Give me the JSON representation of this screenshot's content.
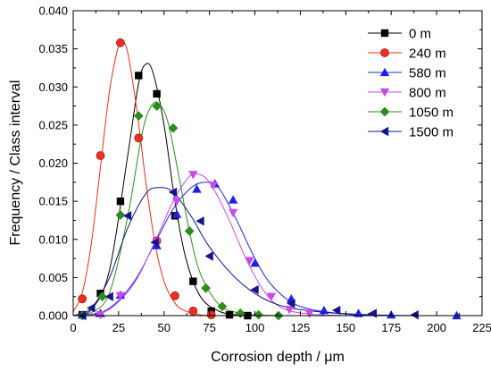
{
  "chart_data": {
    "type": "scatter",
    "xlabel": "Corrosion depth / μm",
    "ylabel": "Frequency / Class interval",
    "xlim": [
      0,
      225
    ],
    "ylim": [
      0,
      0.04
    ],
    "xticks": [
      "0",
      "25",
      "50",
      "75",
      "100",
      "125",
      "150",
      "175",
      "200",
      "225"
    ],
    "yticks": [
      "0.000",
      "0.005",
      "0.010",
      "0.015",
      "0.020",
      "0.025",
      "0.030",
      "0.035",
      "0.040"
    ],
    "grid": false,
    "legend_position": "top-right",
    "series": [
      {
        "name": "0 m",
        "color": "#000000",
        "marker": "square",
        "points": [
          [
            5,
            0.0001
          ],
          [
            15,
            0.0029
          ],
          [
            26,
            0.015
          ],
          [
            36,
            0.0315
          ],
          [
            46,
            0.0291
          ],
          [
            56,
            0.0131
          ],
          [
            66,
            0.0045
          ],
          [
            76,
            0.0006
          ],
          [
            86,
            0.0001
          ],
          [
            96,
            0.0
          ]
        ],
        "curve": [
          [
            0,
            0.0
          ],
          [
            10,
            0.0008
          ],
          [
            20,
            0.006
          ],
          [
            30,
            0.021
          ],
          [
            36,
            0.0305
          ],
          [
            40,
            0.033
          ],
          [
            44,
            0.0318
          ],
          [
            50,
            0.025
          ],
          [
            56,
            0.015
          ],
          [
            62,
            0.0075
          ],
          [
            70,
            0.0025
          ],
          [
            80,
            0.0006
          ],
          [
            90,
            0.0001
          ],
          [
            100,
            0.0
          ]
        ]
      },
      {
        "name": "240 m",
        "color": "#e8301f",
        "marker": "circle",
        "points": [
          [
            5,
            0.0022
          ],
          [
            15,
            0.021
          ],
          [
            26,
            0.0358
          ],
          [
            36,
            0.0233
          ],
          [
            46,
            0.0098
          ],
          [
            56,
            0.0026
          ],
          [
            66,
            0.0006
          ],
          [
            76,
            0.0001
          ]
        ],
        "curve": [
          [
            0,
            0.0005
          ],
          [
            5,
            0.003
          ],
          [
            10,
            0.0095
          ],
          [
            15,
            0.0195
          ],
          [
            20,
            0.0295
          ],
          [
            25,
            0.0355
          ],
          [
            27,
            0.036
          ],
          [
            30,
            0.0345
          ],
          [
            35,
            0.027
          ],
          [
            40,
            0.0175
          ],
          [
            45,
            0.0095
          ],
          [
            50,
            0.0045
          ],
          [
            55,
            0.002
          ],
          [
            60,
            0.0008
          ],
          [
            70,
            0.0001
          ],
          [
            80,
            0.0
          ]
        ]
      },
      {
        "name": "580 m",
        "color": "#1f1fe8",
        "marker": "triangle-up",
        "points": [
          [
            5,
            0.0001
          ],
          [
            15,
            0.0003
          ],
          [
            26,
            0.0027
          ],
          [
            46,
            0.0092
          ],
          [
            57,
            0.0133
          ],
          [
            68,
            0.0166
          ],
          [
            78,
            0.0173
          ],
          [
            88,
            0.0152
          ],
          [
            100,
            0.0069
          ],
          [
            120,
            0.0022
          ],
          [
            138,
            0.0007
          ],
          [
            157,
            0.0003
          ],
          [
            175,
            0.0001
          ],
          [
            211,
            0.0
          ]
        ],
        "curve": [
          [
            0,
            0.0
          ],
          [
            15,
            0.0004
          ],
          [
            25,
            0.002
          ],
          [
            35,
            0.005
          ],
          [
            45,
            0.0095
          ],
          [
            55,
            0.014
          ],
          [
            65,
            0.0168
          ],
          [
            73,
            0.0175
          ],
          [
            80,
            0.0168
          ],
          [
            90,
            0.0125
          ],
          [
            100,
            0.0075
          ],
          [
            110,
            0.0038
          ],
          [
            125,
            0.0012
          ],
          [
            150,
            0.0002
          ],
          [
            175,
            0.0
          ],
          [
            211,
            0.0
          ]
        ]
      },
      {
        "name": "800 m",
        "color": "#c84ae8",
        "marker": "triangle-down",
        "points": [
          [
            15,
            0.0001
          ],
          [
            26,
            0.0026
          ],
          [
            46,
            0.0097
          ],
          [
            57,
            0.015
          ],
          [
            66,
            0.0185
          ],
          [
            77,
            0.0171
          ],
          [
            88,
            0.0135
          ],
          [
            97,
            0.0072
          ],
          [
            109,
            0.0025
          ],
          [
            119,
            0.0008
          ],
          [
            130,
            0.0003
          ]
        ],
        "curve": [
          [
            0,
            0.0
          ],
          [
            15,
            0.0003
          ],
          [
            25,
            0.0018
          ],
          [
            35,
            0.0048
          ],
          [
            45,
            0.0097
          ],
          [
            55,
            0.015
          ],
          [
            63,
            0.018
          ],
          [
            68,
            0.0186
          ],
          [
            75,
            0.0175
          ],
          [
            85,
            0.013
          ],
          [
            95,
            0.0075
          ],
          [
            105,
            0.0032
          ],
          [
            115,
            0.001
          ],
          [
            130,
            0.0002
          ],
          [
            150,
            0.0
          ]
        ]
      },
      {
        "name": "1050 m",
        "color": "#2d8c1e",
        "marker": "diamond",
        "points": [
          [
            5,
            0.0
          ],
          [
            16,
            0.0025
          ],
          [
            26,
            0.0132
          ],
          [
            36,
            0.0262
          ],
          [
            46,
            0.0275
          ],
          [
            55,
            0.0246
          ],
          [
            64,
            0.0111
          ],
          [
            73,
            0.0036
          ],
          [
            82,
            0.0012
          ],
          [
            92,
            0.0003
          ],
          [
            102,
            0.0001
          ],
          [
            113,
            0.0
          ]
        ],
        "curve": [
          [
            0,
            0.0
          ],
          [
            10,
            0.0004
          ],
          [
            20,
            0.003
          ],
          [
            30,
            0.013
          ],
          [
            38,
            0.024
          ],
          [
            43,
            0.0275
          ],
          [
            47,
            0.0278
          ],
          [
            52,
            0.0255
          ],
          [
            58,
            0.0185
          ],
          [
            64,
            0.011
          ],
          [
            70,
            0.0055
          ],
          [
            80,
            0.0015
          ],
          [
            90,
            0.0004
          ],
          [
            100,
            0.0001
          ],
          [
            115,
            0.0
          ]
        ]
      },
      {
        "name": "1500 m",
        "color": "#14148c",
        "marker": "triangle-left",
        "points": [
          [
            5,
            0.0
          ],
          [
            10,
            0.001
          ],
          [
            20,
            0.0025
          ],
          [
            30,
            0.0131
          ],
          [
            45,
            0.0096
          ],
          [
            55,
            0.0162
          ],
          [
            70,
            0.0124
          ],
          [
            75,
            0.0078
          ],
          [
            100,
            0.0034
          ],
          [
            120,
            0.0016
          ],
          [
            145,
            0.0007
          ],
          [
            165,
            0.0003
          ],
          [
            188,
            0.0001
          ]
        ],
        "curve": [
          [
            0,
            0.0
          ],
          [
            10,
            0.001
          ],
          [
            20,
            0.005
          ],
          [
            30,
            0.0115
          ],
          [
            40,
            0.016
          ],
          [
            47,
            0.0168
          ],
          [
            55,
            0.0162
          ],
          [
            65,
            0.013
          ],
          [
            75,
            0.009
          ],
          [
            90,
            0.0048
          ],
          [
            105,
            0.0022
          ],
          [
            120,
            0.001
          ],
          [
            140,
            0.0004
          ],
          [
            165,
            0.0001
          ],
          [
            190,
            0.0
          ]
        ]
      }
    ]
  }
}
